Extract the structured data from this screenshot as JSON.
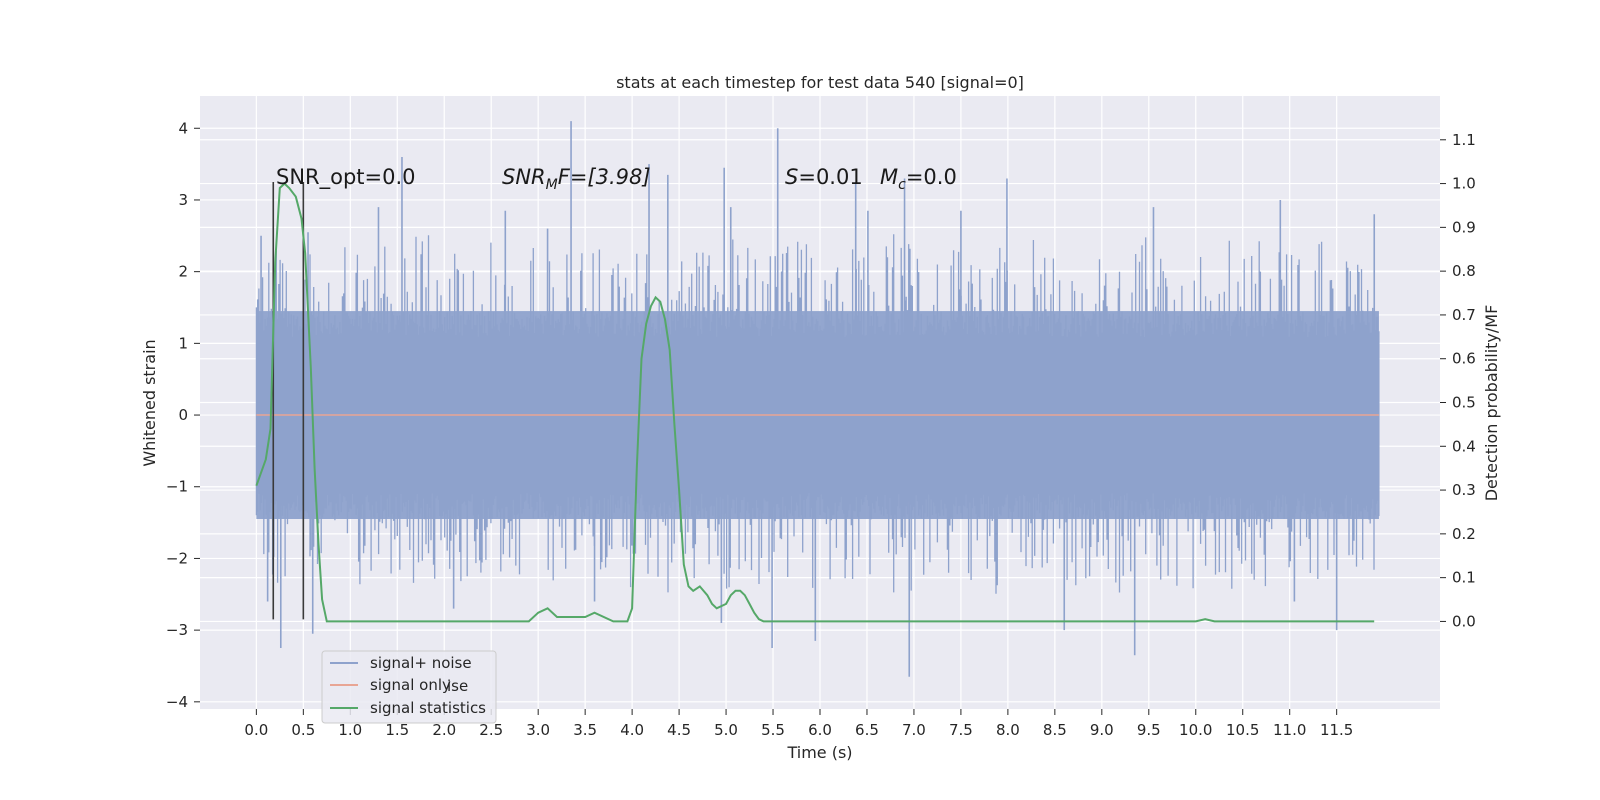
{
  "chart_data": {
    "type": "line",
    "title": "stats at each timestep for test data 540 [signal=0]",
    "xlabel": "Time (s)",
    "ylabel": "Whitened strain",
    "y2label": "Detection probability/MF",
    "xlim": [
      -0.6,
      12.6
    ],
    "ylim": [
      -4.1,
      4.45
    ],
    "y2lim": [
      -0.2,
      1.2
    ],
    "xticks": [
      0.0,
      0.5,
      1.0,
      1.5,
      2.0,
      2.5,
      3.0,
      3.5,
      4.0,
      4.5,
      5.0,
      5.5,
      6.0,
      6.5,
      7.0,
      7.5,
      8.0,
      8.5,
      9.0,
      9.5,
      10.0,
      10.5,
      11.0,
      11.5
    ],
    "xtick_labels": [
      "0.0",
      "0.5",
      "1.0",
      "1.5",
      "2.0",
      "2.5",
      "3.0",
      "3.5",
      "4.0",
      "4.5",
      "5.0",
      "5.5",
      "6.0",
      "6.5",
      "7.0",
      "7.5",
      "8.0",
      "8.5",
      "9.0",
      "9.5",
      "10.0",
      "10.5",
      "11.0",
      "11.5"
    ],
    "yticks": [
      -4,
      -3,
      -2,
      -1,
      0,
      1,
      2,
      3,
      4
    ],
    "ytick_labels": [
      "−4",
      "−3",
      "−2",
      "−1",
      "0",
      "1",
      "2",
      "3",
      "4"
    ],
    "y2ticks": [
      0.0,
      0.1,
      0.2,
      0.3,
      0.4,
      0.5,
      0.6,
      0.7,
      0.8,
      0.9,
      1.0,
      1.1
    ],
    "y2tick_labels": [
      "0.0",
      "0.1",
      "0.2",
      "0.3",
      "0.4",
      "0.5",
      "0.6",
      "0.7",
      "0.8",
      "0.9",
      "1.0",
      "1.1"
    ],
    "grid": true,
    "legend_position": "lower-left",
    "legend": [
      "signal+ noise",
      "signal only",
      "signal statistics"
    ],
    "legend_ghost_text": "ise",
    "annotations": {
      "snr_opt": "SNR_opt=0.0",
      "snr_mf_base": "SNR",
      "snr_mf_sub": "M",
      "snr_mf_rest": "F=[3.98]",
      "s_var": "S",
      "s_rest": "=0.01",
      "mc_var": "M",
      "mc_sub": "c",
      "mc_rest": "=0.0"
    },
    "markers": {
      "vertical_lines_x": [
        0.18,
        0.5
      ],
      "vertical_lines_y": [
        -2.85,
        3.25
      ]
    },
    "series": [
      {
        "name": "signal+ noise",
        "axis": "left",
        "color": "#8ea2cc",
        "kind": "noise",
        "x_range": [
          0.0,
          11.95
        ],
        "band": [
          -1.45,
          1.45
        ],
        "spikes": [
          {
            "x": 0.05,
            "y": 2.5
          },
          {
            "x": 0.12,
            "y": -2.6
          },
          {
            "x": 0.26,
            "y": -3.25
          },
          {
            "x": 0.55,
            "y": 2.55
          },
          {
            "x": 0.6,
            "y": -3.05
          },
          {
            "x": 1.3,
            "y": 2.9
          },
          {
            "x": 1.55,
            "y": 3.6
          },
          {
            "x": 2.1,
            "y": -2.7
          },
          {
            "x": 2.65,
            "y": 2.85
          },
          {
            "x": 3.1,
            "y": 2.6
          },
          {
            "x": 3.35,
            "y": 4.1
          },
          {
            "x": 3.6,
            "y": -2.6
          },
          {
            "x": 4.18,
            "y": 3.5
          },
          {
            "x": 4.38,
            "y": 3.35
          },
          {
            "x": 4.95,
            "y": -2.9
          },
          {
            "x": 4.98,
            "y": 3.45
          },
          {
            "x": 5.05,
            "y": 2.9
          },
          {
            "x": 5.49,
            "y": -3.25
          },
          {
            "x": 5.55,
            "y": 4.0
          },
          {
            "x": 5.95,
            "y": -3.15
          },
          {
            "x": 6.38,
            "y": 3.25
          },
          {
            "x": 6.51,
            "y": 2.85
          },
          {
            "x": 6.9,
            "y": 3.3
          },
          {
            "x": 6.95,
            "y": -3.65
          },
          {
            "x": 7.5,
            "y": 2.85
          },
          {
            "x": 7.99,
            "y": 3.3
          },
          {
            "x": 8.6,
            "y": -3.0
          },
          {
            "x": 9.35,
            "y": -3.35
          },
          {
            "x": 9.55,
            "y": 2.9
          },
          {
            "x": 10.9,
            "y": 3.0
          },
          {
            "x": 11.05,
            "y": -2.6
          },
          {
            "x": 11.5,
            "y": -3.0
          },
          {
            "x": 11.9,
            "y": 2.8
          }
        ]
      },
      {
        "name": "signal only",
        "axis": "left",
        "color": "#e8a594",
        "x": [
          0.0,
          11.95
        ],
        "y": [
          0.0,
          0.0
        ]
      },
      {
        "name": "signal statistics",
        "axis": "right",
        "color": "#55a868",
        "x": [
          0.0,
          0.1,
          0.15,
          0.2,
          0.25,
          0.3,
          0.35,
          0.42,
          0.48,
          0.52,
          0.58,
          0.62,
          0.66,
          0.7,
          0.75,
          0.8,
          1.0,
          1.5,
          2.0,
          2.5,
          2.9,
          3.0,
          3.1,
          3.2,
          3.5,
          3.6,
          3.8,
          3.95,
          4.0,
          4.05,
          4.1,
          4.15,
          4.2,
          4.25,
          4.3,
          4.35,
          4.4,
          4.45,
          4.5,
          4.55,
          4.6,
          4.65,
          4.72,
          4.8,
          4.85,
          4.9,
          5.0,
          5.05,
          5.1,
          5.15,
          5.2,
          5.25,
          5.3,
          5.35,
          5.4,
          5.5,
          6.0,
          6.5,
          7.0,
          7.5,
          8.0,
          8.5,
          9.0,
          9.5,
          10.0,
          10.1,
          10.2,
          10.5,
          11.0,
          11.5,
          11.9
        ],
        "y": [
          0.31,
          0.37,
          0.44,
          0.82,
          0.99,
          1.0,
          0.99,
          0.97,
          0.92,
          0.84,
          0.58,
          0.35,
          0.18,
          0.05,
          0.0,
          0.0,
          0.0,
          0.0,
          0.0,
          0.0,
          0.0,
          0.02,
          0.03,
          0.01,
          0.01,
          0.02,
          0.0,
          0.0,
          0.03,
          0.35,
          0.6,
          0.68,
          0.72,
          0.74,
          0.73,
          0.69,
          0.62,
          0.45,
          0.3,
          0.13,
          0.08,
          0.07,
          0.08,
          0.06,
          0.04,
          0.03,
          0.04,
          0.06,
          0.07,
          0.07,
          0.06,
          0.04,
          0.02,
          0.005,
          0.0,
          0.0,
          0.0,
          0.0,
          0.0,
          0.0,
          0.0,
          0.0,
          0.0,
          0.0,
          0.0,
          0.005,
          0.0,
          0.0,
          0.0,
          0.0,
          0.0
        ]
      }
    ]
  }
}
